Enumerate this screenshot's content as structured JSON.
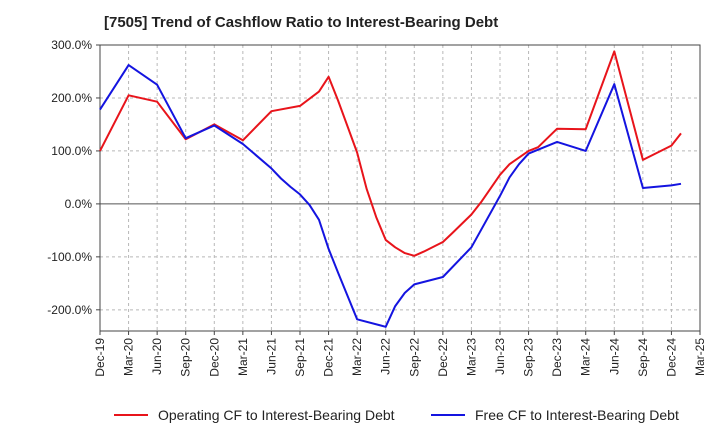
{
  "chart_data": {
    "type": "line",
    "title": "[7505]  Trend of Cashflow Ratio to Interest-Bearing Debt",
    "xlabel": "",
    "ylabel": "",
    "ylim": [
      -240,
      300
    ],
    "yticks": [
      -200,
      -100,
      0,
      100,
      200,
      300
    ],
    "ytick_labels": [
      "-200.0%",
      "-100.0%",
      "0.0%",
      "100.0%",
      "200.0%",
      "300.0%"
    ],
    "x_min": 0,
    "x_max": 63,
    "xtick_labels": [
      "Dec-19",
      "Mar-20",
      "Jun-20",
      "Sep-20",
      "Dec-20",
      "Mar-21",
      "Jun-21",
      "Sep-21",
      "Dec-21",
      "Mar-22",
      "Jun-22",
      "Sep-22",
      "Dec-22",
      "Mar-23",
      "Jun-23",
      "Sep-23",
      "Dec-23",
      "Mar-24",
      "Jun-24",
      "Sep-24",
      "Dec-24",
      "Mar-25"
    ],
    "grid": true,
    "legend_position": "bottom",
    "series": [
      {
        "name": "Operating CF to Interest-Bearing Debt",
        "color": "#e8141b",
        "x": [
          0,
          3,
          6,
          9,
          12,
          15,
          18,
          21,
          23,
          24,
          25,
          27,
          28,
          29,
          30,
          31,
          32,
          33,
          34,
          36,
          37,
          39,
          40,
          42,
          43,
          45,
          46,
          48,
          51,
          54,
          57,
          60,
          61,
          63,
          64
        ],
        "y": [
          100,
          205,
          193,
          122,
          150,
          120,
          175,
          185,
          212,
          240,
          195,
          97,
          28,
          -25,
          -68,
          -82,
          -93,
          -98,
          -90,
          -72,
          -55,
          -20,
          3,
          55,
          75,
          100,
          107,
          142,
          141,
          288,
          83,
          110,
          133,
          null,
          null
        ]
      },
      {
        "name": "Free CF to Interest-Bearing Debt",
        "color": "#1414e0",
        "x": [
          0,
          3,
          6,
          9,
          12,
          15,
          18,
          19,
          20,
          21,
          22,
          23,
          24,
          25,
          27,
          30,
          31,
          32,
          33,
          36,
          39,
          42,
          43,
          44,
          45,
          48,
          51,
          54,
          57,
          60,
          61
        ],
        "y": [
          178,
          262,
          225,
          124,
          148,
          113,
          67,
          48,
          32,
          18,
          -2,
          -30,
          -85,
          -130,
          -218,
          -232,
          -193,
          -168,
          -152,
          -138,
          -82,
          15,
          50,
          75,
          95,
          117,
          100,
          226,
          30,
          35,
          38
        ]
      }
    ]
  }
}
